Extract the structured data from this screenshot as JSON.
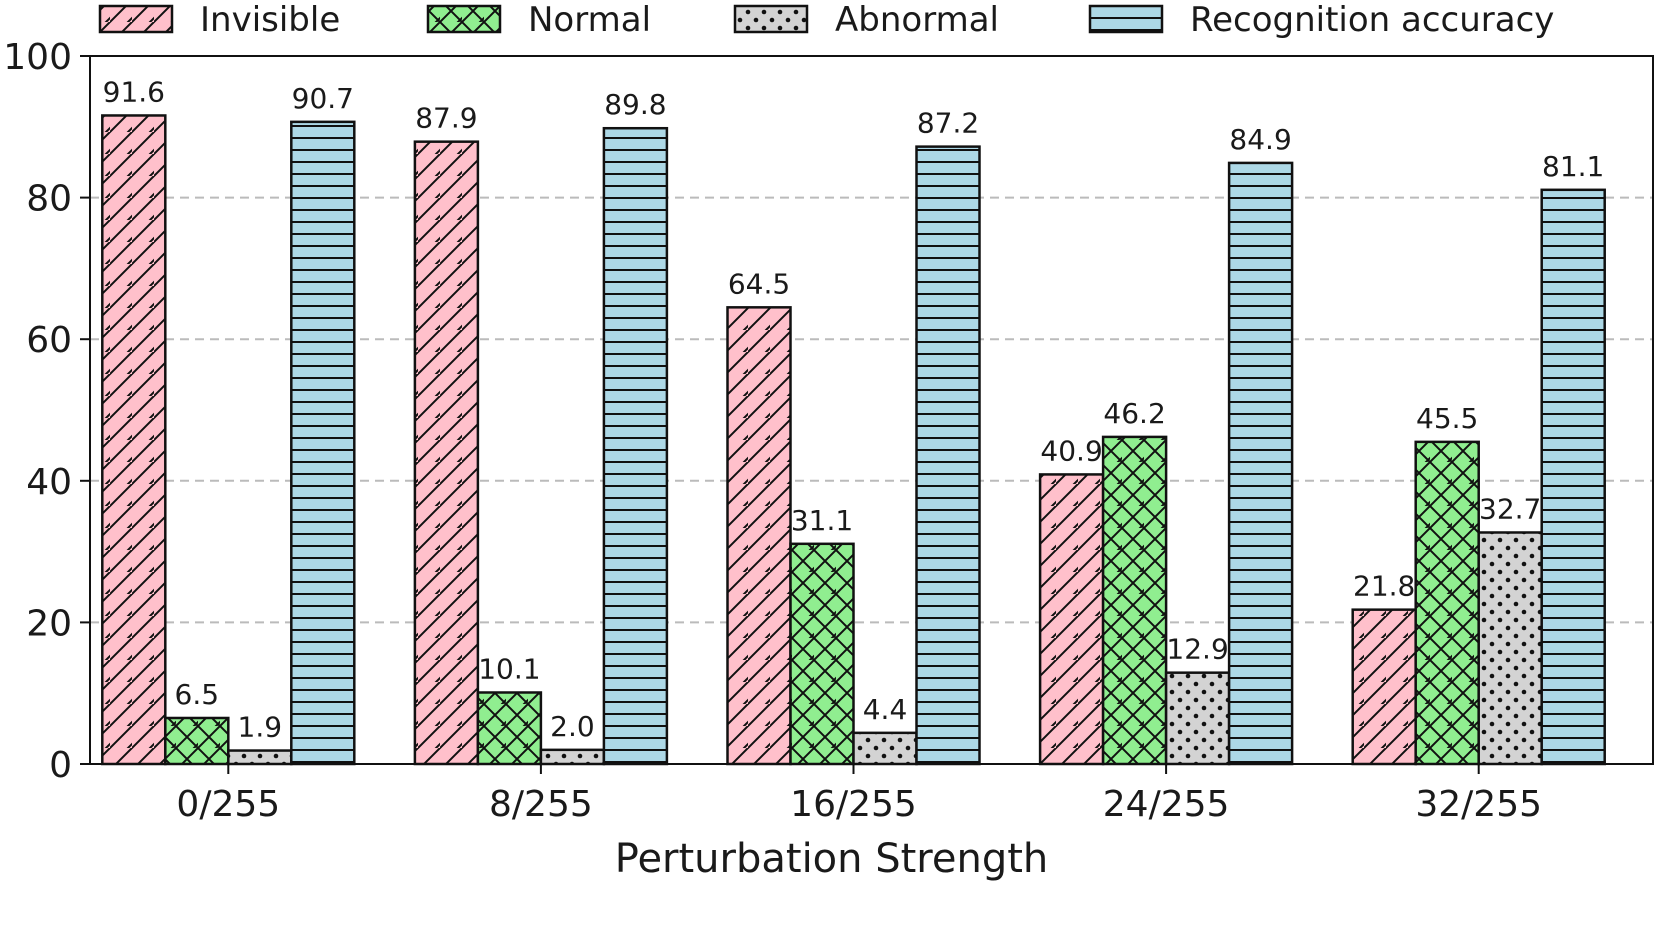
{
  "chart_data": {
    "type": "bar",
    "title": "",
    "xlabel": "Perturbation Strength",
    "ylabel": "",
    "ylim": [
      0,
      100
    ],
    "yticks": [
      0,
      20,
      40,
      60,
      80,
      100
    ],
    "grid": "horizontal dashed",
    "legend_position": "top",
    "categories": [
      "0/255",
      "8/255",
      "16/255",
      "24/255",
      "32/255"
    ],
    "series": [
      {
        "name": "Invisible",
        "color": "#ffc0cb",
        "hatch": "diagonal",
        "values": [
          91.6,
          87.9,
          64.5,
          40.9,
          21.8
        ]
      },
      {
        "name": "Normal",
        "color": "#90ee90",
        "hatch": "crosshatch",
        "values": [
          6.5,
          10.1,
          31.1,
          46.2,
          45.5
        ]
      },
      {
        "name": "Abnormal",
        "color": "#d3d3d3",
        "hatch": "dots",
        "values": [
          1.9,
          2.0,
          4.4,
          12.9,
          32.7
        ]
      },
      {
        "name": "Recognition accuracy",
        "color": "#add8e6",
        "hatch": "horizontal",
        "values": [
          90.7,
          89.8,
          87.2,
          84.9,
          81.1
        ]
      }
    ]
  }
}
